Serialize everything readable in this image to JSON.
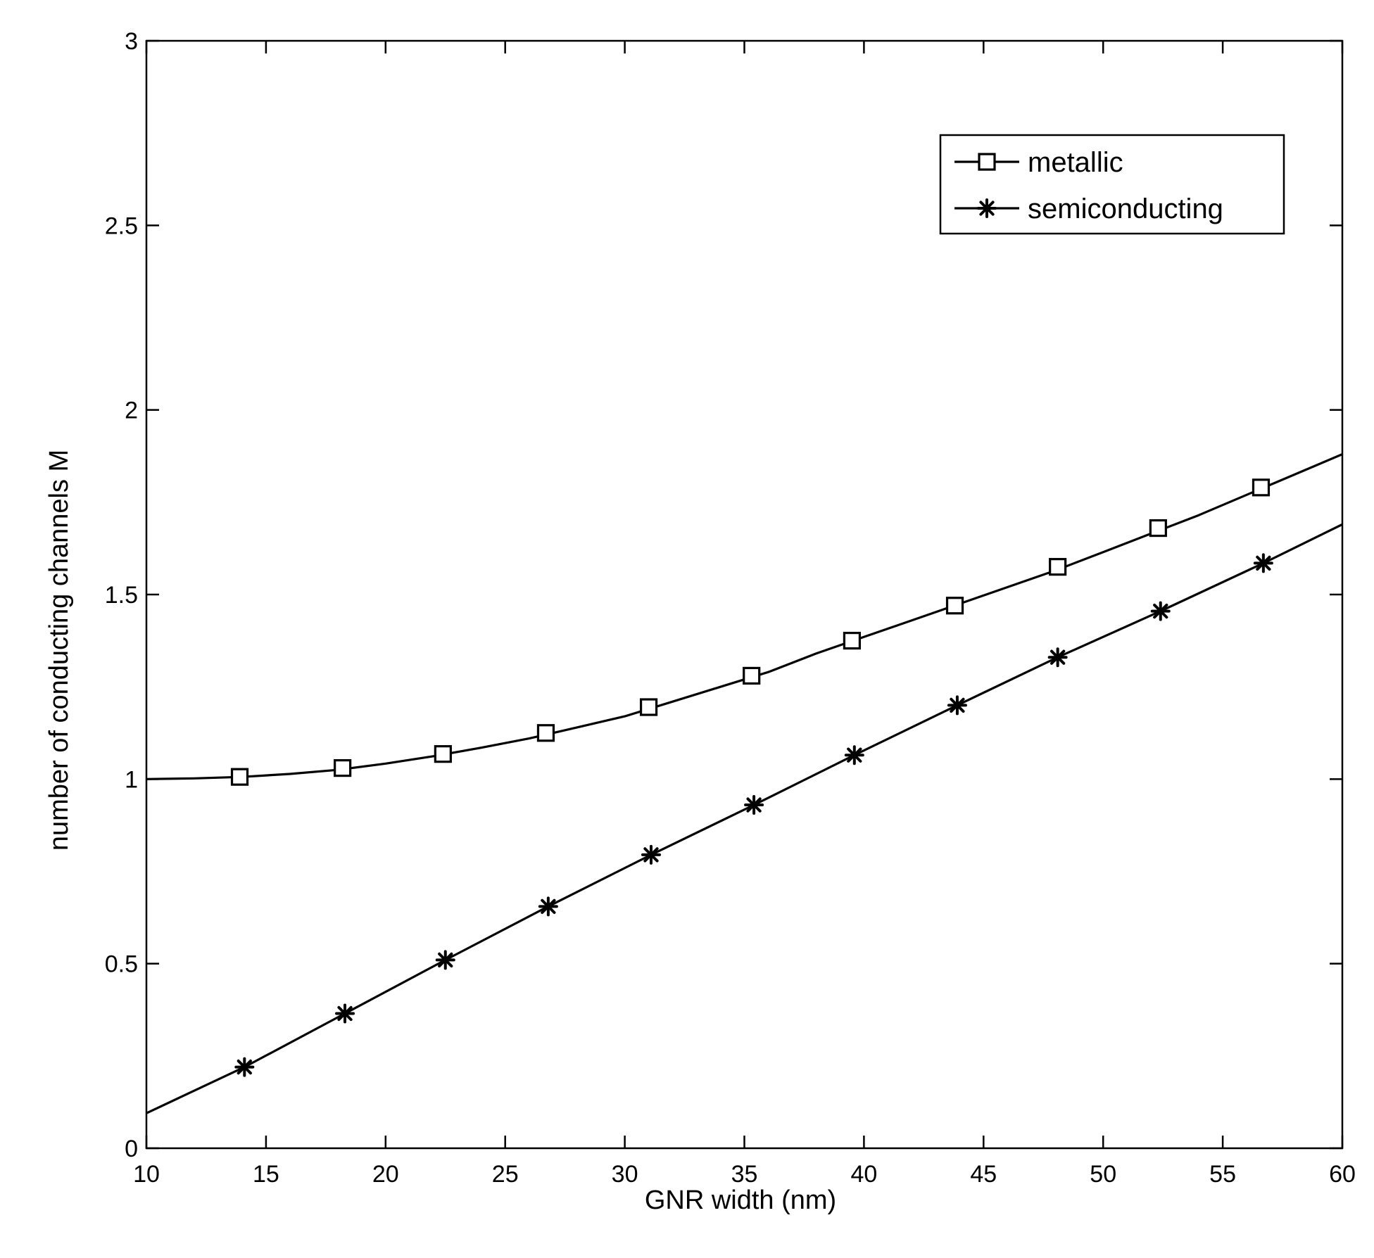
{
  "chart_data": {
    "type": "line",
    "title": "",
    "xlabel": "GNR width (nm)",
    "ylabel": "number of conducting channels  M",
    "xlim": [
      10,
      60
    ],
    "ylim": [
      0,
      3
    ],
    "x_ticks": [
      "10",
      "15",
      "20",
      "25",
      "30",
      "35",
      "40",
      "45",
      "50",
      "55",
      "60"
    ],
    "y_ticks": [
      "0",
      "0.5",
      "1",
      "1.5",
      "2",
      "2.5",
      "3"
    ],
    "grid": false,
    "legend_position": "top-right",
    "series": [
      {
        "name": "metallic",
        "marker": "square",
        "color": "#000000",
        "line": [
          [
            10,
            1.0
          ],
          [
            12,
            1.002
          ],
          [
            14,
            1.006
          ],
          [
            16,
            1.014
          ],
          [
            18,
            1.025
          ],
          [
            20,
            1.042
          ],
          [
            22,
            1.062
          ],
          [
            24,
            1.085
          ],
          [
            26,
            1.11
          ],
          [
            28,
            1.14
          ],
          [
            30,
            1.17
          ],
          [
            32,
            1.21
          ],
          [
            34,
            1.25
          ],
          [
            36,
            1.29
          ],
          [
            38,
            1.34
          ],
          [
            40,
            1.385
          ],
          [
            42,
            1.43
          ],
          [
            44,
            1.475
          ],
          [
            46,
            1.52
          ],
          [
            48,
            1.565
          ],
          [
            50,
            1.615
          ],
          [
            52,
            1.665
          ],
          [
            54,
            1.715
          ],
          [
            56,
            1.77
          ],
          [
            58,
            1.825
          ],
          [
            60,
            1.88
          ]
        ],
        "markers": [
          [
            13.9,
            1.006
          ],
          [
            18.2,
            1.03
          ],
          [
            22.4,
            1.068
          ],
          [
            26.7,
            1.125
          ],
          [
            31.0,
            1.195
          ],
          [
            35.3,
            1.28
          ],
          [
            39.5,
            1.375
          ],
          [
            43.8,
            1.47
          ],
          [
            48.1,
            1.575
          ],
          [
            52.3,
            1.68
          ],
          [
            56.6,
            1.79
          ]
        ]
      },
      {
        "name": "semiconducting",
        "marker": "asterisk",
        "color": "#000000",
        "line": [
          [
            10,
            0.095
          ],
          [
            14.1,
            0.22
          ],
          [
            18.3,
            0.365
          ],
          [
            22.5,
            0.51
          ],
          [
            26.8,
            0.655
          ],
          [
            31.1,
            0.795
          ],
          [
            35.4,
            0.93
          ],
          [
            39.6,
            1.065
          ],
          [
            43.9,
            1.2
          ],
          [
            48.1,
            1.33
          ],
          [
            52.4,
            1.455
          ],
          [
            56.7,
            1.585
          ],
          [
            60,
            1.69
          ]
        ],
        "markers": [
          [
            14.1,
            0.22
          ],
          [
            18.3,
            0.365
          ],
          [
            22.5,
            0.51
          ],
          [
            26.8,
            0.655
          ],
          [
            31.1,
            0.795
          ],
          [
            35.4,
            0.93
          ],
          [
            39.6,
            1.065
          ],
          [
            43.9,
            1.2
          ],
          [
            48.1,
            1.33
          ],
          [
            52.4,
            1.455
          ],
          [
            56.7,
            1.585
          ]
        ]
      }
    ]
  }
}
